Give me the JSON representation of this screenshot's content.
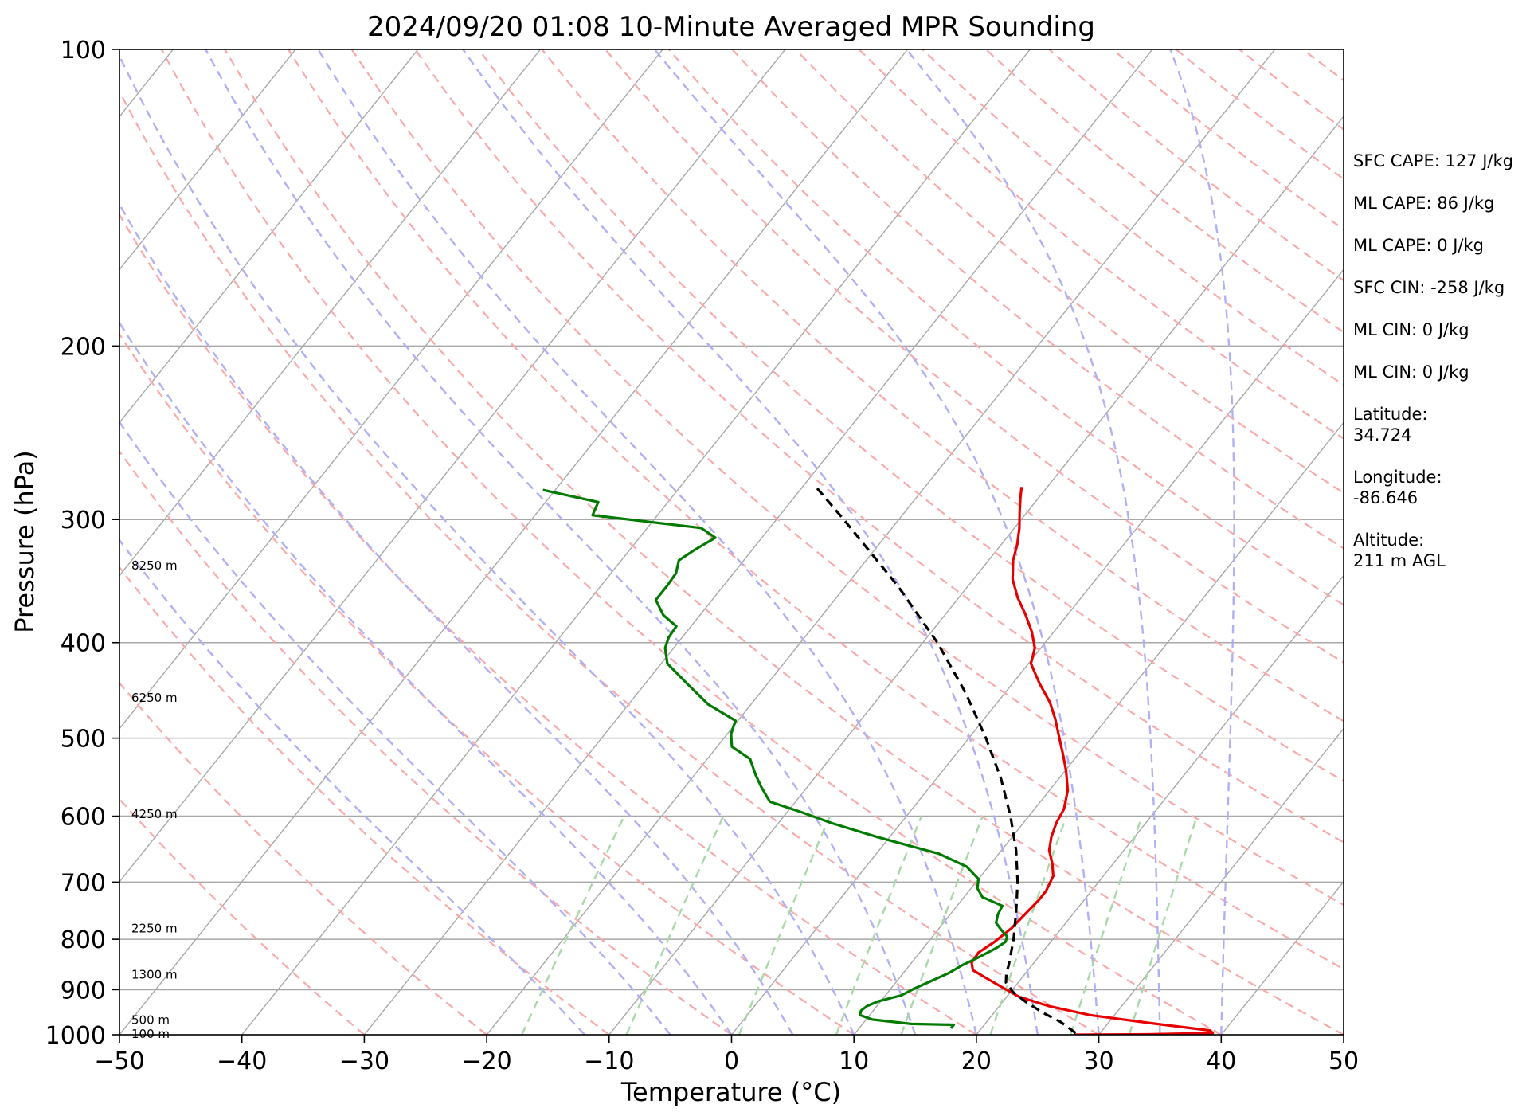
{
  "colors": {
    "temperature": "#e60000",
    "dewpoint": "#007a00",
    "parcel": "#000000",
    "isobar": "#a8a8a8",
    "isotherm": "#a8a8a8",
    "dry_adiabat": "#f8aaaa",
    "moist_adiabat": "#b0b0f5",
    "mixing_ratio": "#a9d8a9"
  },
  "chart_data": {
    "type": "line",
    "subtype": "skew-T log-p sounding",
    "title": "2024/09/20 01:08 10-Minute Averaged MPR Sounding",
    "xlabel": "Temperature (°C)",
    "ylabel": "Pressure (hPa)",
    "xlim": [
      -50,
      50
    ],
    "ylim": [
      1000,
      100
    ],
    "y_scale": "log",
    "x_ticks": [
      "−50",
      "−40",
      "−30",
      "−20",
      "−10",
      "0",
      "10",
      "20",
      "30",
      "40",
      "50"
    ],
    "x_tick_values": [
      -50,
      -40,
      -30,
      -20,
      -10,
      0,
      10,
      20,
      30,
      40,
      50
    ],
    "y_ticks": [
      "100",
      "200",
      "300",
      "400",
      "500",
      "600",
      "700",
      "800",
      "900",
      "1000"
    ],
    "y_tick_values": [
      100,
      200,
      300,
      400,
      500,
      600,
      700,
      800,
      900,
      1000
    ],
    "grid": true,
    "series": [
      {
        "key": "temperature",
        "points": [
          [
            1000,
            28
          ],
          [
            999,
            34
          ],
          [
            996,
            39.2
          ],
          [
            990,
            38.8
          ],
          [
            975,
            34
          ],
          [
            955,
            28
          ],
          [
            935,
            24
          ],
          [
            915,
            21
          ],
          [
            895,
            19
          ],
          [
            875,
            17
          ],
          [
            860,
            15.5
          ],
          [
            845,
            14.9
          ],
          [
            825,
            14.8
          ],
          [
            805,
            15.4
          ],
          [
            780,
            15.9
          ],
          [
            755,
            16.1
          ],
          [
            730,
            16.3
          ],
          [
            715,
            16.3
          ],
          [
            690,
            15.9
          ],
          [
            670,
            15.0
          ],
          [
            650,
            13.9
          ],
          [
            630,
            13.2
          ],
          [
            610,
            12.7
          ],
          [
            590,
            12.4
          ],
          [
            565,
            11.5
          ],
          [
            540,
            10.1
          ],
          [
            520,
            8.8
          ],
          [
            500,
            7.4
          ],
          [
            478,
            5.8
          ],
          [
            460,
            4.3
          ],
          [
            440,
            2.2
          ],
          [
            420,
            0.2
          ],
          [
            405,
            -0.5
          ],
          [
            390,
            -1.8
          ],
          [
            375,
            -3.4
          ],
          [
            360,
            -5.2
          ],
          [
            345,
            -6.8
          ],
          [
            330,
            -8.0
          ],
          [
            318,
            -8.7
          ],
          [
            306,
            -9.6
          ],
          [
            295,
            -10.6
          ],
          [
            285,
            -11.5
          ],
          [
            278,
            -12.1
          ]
        ]
      },
      {
        "key": "dewpoint",
        "points": [
          [
            985,
            17.5
          ],
          [
            977,
            17.5
          ],
          [
            975,
            14
          ],
          [
            965,
            10.5
          ],
          [
            955,
            9.2
          ],
          [
            945,
            9.0
          ],
          [
            935,
            9.2
          ],
          [
            925,
            9.8
          ],
          [
            912,
            11.3
          ],
          [
            898,
            11.9
          ],
          [
            882,
            12.8
          ],
          [
            866,
            13.7
          ],
          [
            850,
            14.3
          ],
          [
            835,
            15.1
          ],
          [
            818,
            15.9
          ],
          [
            805,
            16.3
          ],
          [
            795,
            16.1
          ],
          [
            783,
            15.2
          ],
          [
            770,
            14.3
          ],
          [
            755,
            13.9
          ],
          [
            740,
            13.7
          ],
          [
            725,
            11.5
          ],
          [
            710,
            10.5
          ],
          [
            695,
            10.0
          ],
          [
            675,
            8.2
          ],
          [
            655,
            5.1
          ],
          [
            630,
            -1.0
          ],
          [
            610,
            -5.6
          ],
          [
            595,
            -8.7
          ],
          [
            580,
            -12.1
          ],
          [
            560,
            -13.8
          ],
          [
            545,
            -15.0
          ],
          [
            525,
            -16.5
          ],
          [
            510,
            -18.8
          ],
          [
            495,
            -19.7
          ],
          [
            480,
            -20.2
          ],
          [
            462,
            -23.5
          ],
          [
            440,
            -26.6
          ],
          [
            420,
            -29.5
          ],
          [
            405,
            -30.7
          ],
          [
            395,
            -31.1
          ],
          [
            385,
            -31.2
          ],
          [
            375,
            -33.0
          ],
          [
            362,
            -34.6
          ],
          [
            350,
            -34.6
          ],
          [
            340,
            -34.7
          ],
          [
            330,
            -35.3
          ],
          [
            322,
            -34.7
          ],
          [
            313,
            -33.8
          ],
          [
            306,
            -35.6
          ],
          [
            297,
            -45.3
          ],
          [
            288,
            -45.7
          ],
          [
            280,
            -51.0
          ]
        ]
      },
      {
        "key": "parcel",
        "points": [
          [
            996,
            28
          ],
          [
            970,
            26
          ],
          [
            950,
            24
          ],
          [
            925,
            21.8
          ],
          [
            905,
            20.2
          ],
          [
            885,
            19.0
          ],
          [
            865,
            18.4
          ],
          [
            850,
            18.1
          ],
          [
            800,
            16.8
          ],
          [
            750,
            15.2
          ],
          [
            700,
            13.4
          ],
          [
            650,
            11.2
          ],
          [
            600,
            8.5
          ],
          [
            550,
            5.3
          ],
          [
            500,
            1.4
          ],
          [
            450,
            -3.2
          ],
          [
            400,
            -8.8
          ],
          [
            350,
            -15.8
          ],
          [
            300,
            -24.5
          ],
          [
            278,
            -28.9
          ]
        ]
      }
    ],
    "height_labels": [
      {
        "pressure": 998,
        "text": "100 m"
      },
      {
        "pressure": 966,
        "text": "500 m"
      },
      {
        "pressure": 869,
        "text": "1300 m"
      },
      {
        "pressure": 780,
        "text": "2250 m"
      },
      {
        "pressure": 597,
        "text": "4250 m"
      },
      {
        "pressure": 455,
        "text": "6250 m"
      },
      {
        "pressure": 334,
        "text": "8250 m"
      }
    ],
    "stats": [
      "SFC CAPE: 127 J/kg",
      "ML CAPE: 86 J/kg",
      "ML CAPE: 0 J/kg",
      "SFC CIN: -258 J/kg",
      "ML CIN: 0 J/kg",
      "ML CIN: 0 J/kg",
      "Latitude:\n34.724",
      "Longitude:\n-86.646",
      "Altitude:\n211 m AGL"
    ]
  }
}
